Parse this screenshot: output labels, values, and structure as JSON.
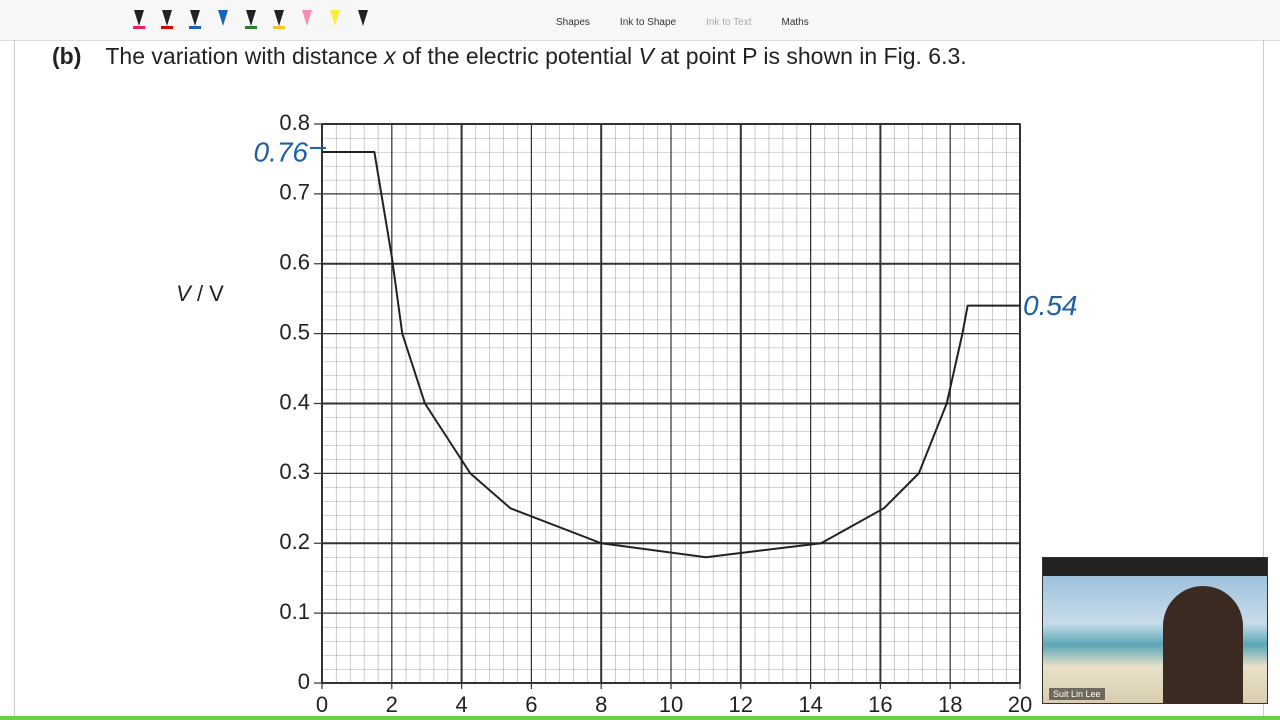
{
  "toolbar": {
    "items": [
      "Shapes",
      "Ink to Shape",
      "Ink to Text",
      "Maths"
    ]
  },
  "question": {
    "label": "(b)",
    "parts": [
      "The variation with distance ",
      "x",
      " of the electric potential ",
      "V",
      " at point P is shown in Fig. 6.3."
    ]
  },
  "chart_data": {
    "type": "line",
    "ylabel_parts": [
      "V",
      " / V"
    ],
    "x": [
      0,
      1.5,
      2,
      2.3,
      2.95,
      4.25,
      5.4,
      8,
      11,
      14.3,
      16.1,
      17.1,
      17.9,
      18.35,
      18.5,
      20
    ],
    "series": [
      {
        "color": "#222222",
        "values": [
          0.76,
          0.76,
          0.61,
          0.5,
          0.4,
          0.3,
          0.25,
          0.2,
          0.18,
          0.2,
          0.25,
          0.3,
          0.4,
          0.5,
          0.54,
          0.54
        ]
      }
    ],
    "xlim": [
      0,
      20
    ],
    "xticks": [
      0,
      2,
      4,
      6,
      8,
      10,
      12,
      14,
      16,
      18,
      20
    ],
    "ylim": [
      0,
      0.8
    ],
    "yticks": [
      0,
      0.1,
      0.2,
      0.3,
      0.4,
      0.5,
      0.6,
      0.7,
      0.8
    ],
    "grid": true,
    "annotations": [
      {
        "text": "0.76",
        "x": 0,
        "y": 0.76
      },
      {
        "text": "0.54",
        "x": 20,
        "y": 0.54
      }
    ],
    "annotation_color": "#1f5fa8"
  },
  "webcam": {
    "name": "Suit Lin Lee"
  }
}
